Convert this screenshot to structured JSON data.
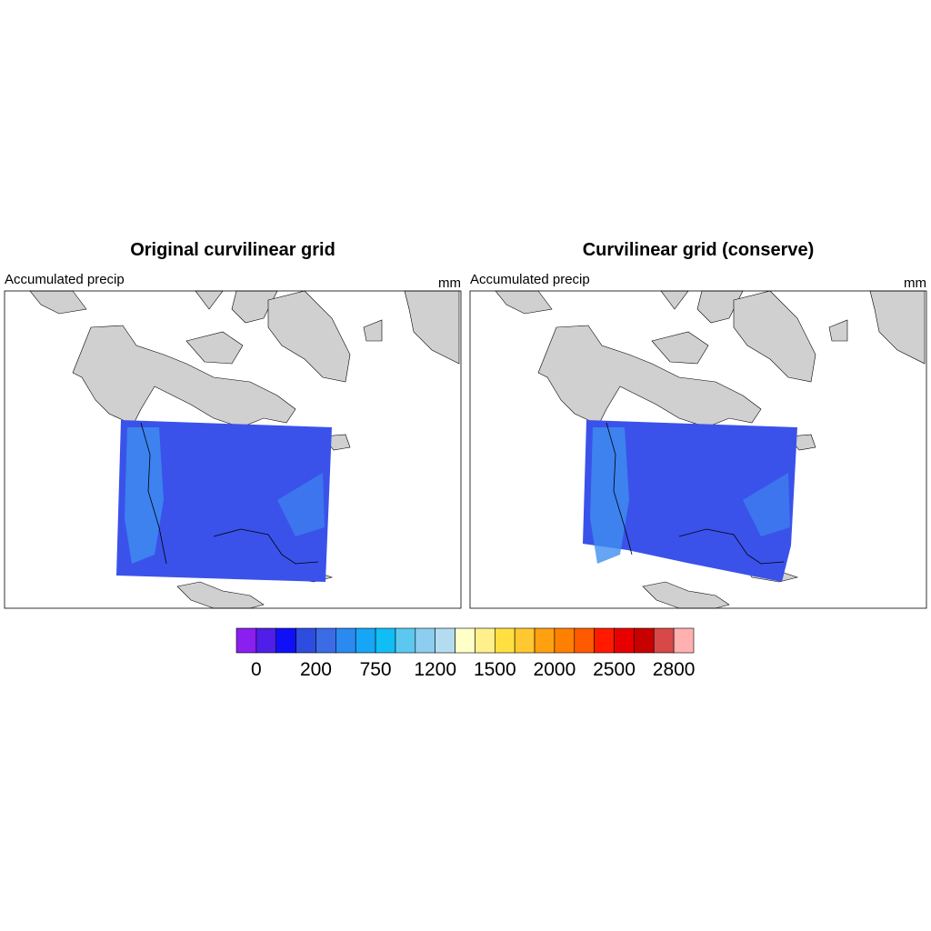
{
  "panels": [
    {
      "title": "Original curvilinear grid",
      "left_string": "Accumulated precip",
      "right_string": "mm"
    },
    {
      "title": "Curvilinear grid (conserve)",
      "left_string": "Accumulated precip",
      "right_string": "mm"
    }
  ],
  "colorbar": {
    "colors": [
      "#8a1ff0",
      "#4f1ee8",
      "#1010f8",
      "#2d4de0",
      "#3b6ce6",
      "#2b8af0",
      "#17a6f5",
      "#10bef5",
      "#5cc8f0",
      "#8ccdf0",
      "#b4dcf0",
      "#ffffc8",
      "#fff08c",
      "#ffe040",
      "#ffc830",
      "#ffa010",
      "#ff8000",
      "#ff5a00",
      "#ff1a00",
      "#e80000",
      "#c80000",
      "#d84848",
      "#ffb0b0"
    ],
    "labels": [
      0,
      200,
      750,
      1200,
      1500,
      2000,
      2500,
      2800
    ]
  }
}
